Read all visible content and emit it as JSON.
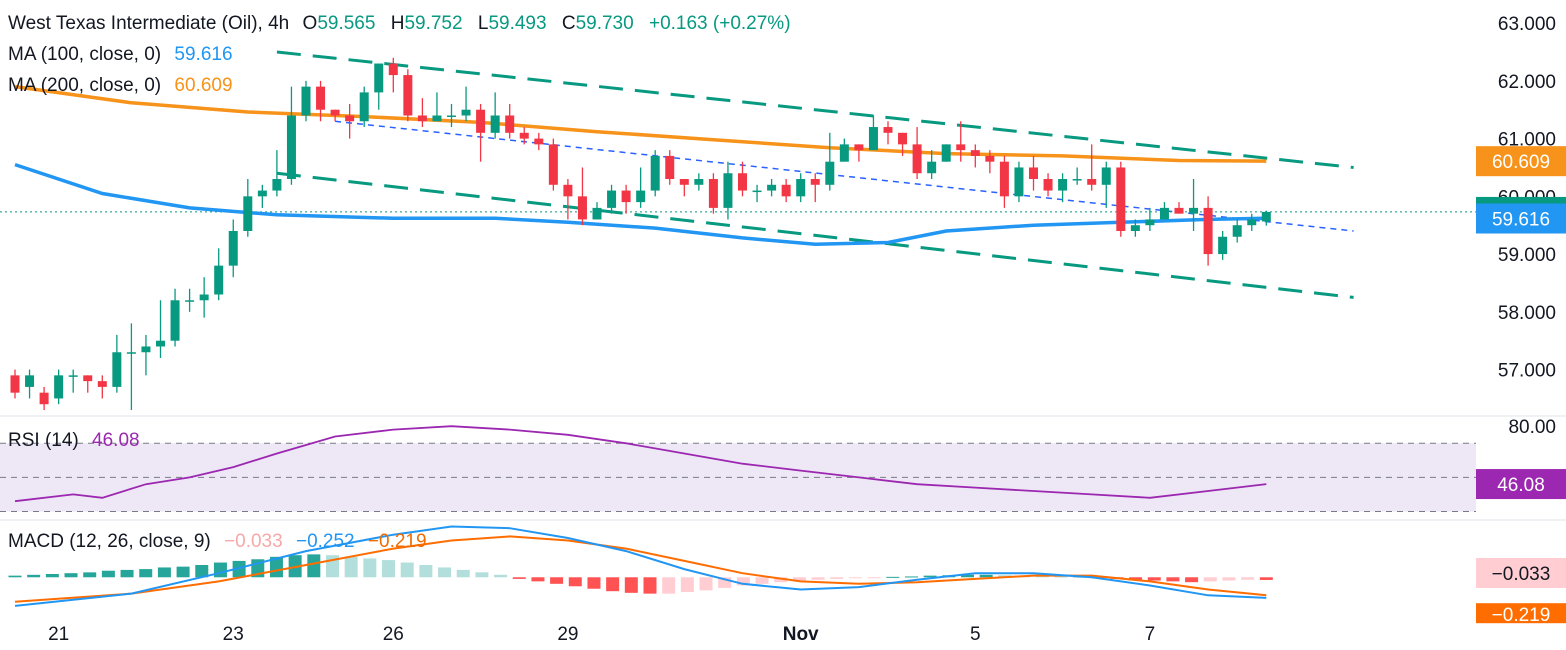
{
  "legend": {
    "title": "West Texas Intermediate (Oil), 4h",
    "ohlc": [
      {
        "label": "O",
        "value": "59.565"
      },
      {
        "label": "H",
        "value": "59.752"
      },
      {
        "label": "L",
        "value": "59.493"
      },
      {
        "label": "C",
        "value": "59.730"
      }
    ],
    "change": "+0.163 (+0.27%)",
    "ma100_label": "MA (100, close, 0)",
    "ma100_value": "59.616",
    "ma200_label": "MA (200, close, 0)",
    "ma200_value": "60.609",
    "rsi_label": "RSI (14)",
    "rsi_value": "46.08",
    "macd_label": "MACD (12, 26, close, 9)",
    "macd_hist": "−0.033",
    "macd_line": "−0.252",
    "macd_signal": "−0.219"
  },
  "colors": {
    "up": "#089981",
    "down": "#f23645",
    "ma100": "#2196f3",
    "ma200": "#f7931a",
    "channel": "#089981",
    "midline": "#2962ff",
    "rsi": "#9c27b0",
    "rsi_band": "#ede7f6",
    "macd_line": "#2196f3",
    "signal_line": "#ff6d00"
  },
  "chart_data": {
    "type": "candlestick",
    "timeframe": "4h",
    "price_axis": {
      "ylim": [
        56.3,
        63.4
      ],
      "ticks": [
        "63.000",
        "62.000",
        "61.000",
        "60.000",
        "59.000",
        "58.000",
        "57.000"
      ]
    },
    "x_ticks": [
      {
        "label": "21",
        "index": 3
      },
      {
        "label": "23",
        "index": 15
      },
      {
        "label": "26",
        "index": 26
      },
      {
        "label": "29",
        "index": 38
      },
      {
        "label": "Nov",
        "index": 54
      },
      {
        "label": "5",
        "index": 66
      },
      {
        "label": "7",
        "index": 78
      }
    ],
    "last_price": "59.730",
    "price_badges": [
      {
        "label": "60.609",
        "value": 60.609,
        "color": "#f7931a"
      },
      {
        "label": "59.730",
        "value": 59.73,
        "color": "#089981"
      },
      {
        "label": "59.616",
        "value": 59.616,
        "color": "#2196f3"
      }
    ],
    "candles": [
      [
        56.9,
        56.6,
        57.0,
        56.5
      ],
      [
        56.7,
        56.9,
        57.0,
        56.5
      ],
      [
        56.6,
        56.4,
        56.7,
        56.3
      ],
      [
        56.5,
        56.9,
        57.0,
        56.4
      ],
      [
        56.9,
        56.9,
        57.0,
        56.6
      ],
      [
        56.9,
        56.8,
        56.9,
        56.6
      ],
      [
        56.8,
        56.7,
        56.9,
        56.5
      ],
      [
        56.7,
        57.3,
        57.6,
        56.6
      ],
      [
        57.3,
        57.3,
        57.8,
        56.3
      ],
      [
        57.3,
        57.4,
        57.6,
        56.9
      ],
      [
        57.4,
        57.5,
        58.2,
        57.2
      ],
      [
        57.5,
        58.2,
        58.4,
        57.4
      ],
      [
        58.2,
        58.2,
        58.4,
        58.0
      ],
      [
        58.2,
        58.3,
        58.6,
        57.9
      ],
      [
        58.3,
        58.8,
        59.1,
        58.2
      ],
      [
        58.8,
        59.4,
        59.6,
        58.6
      ],
      [
        59.4,
        60.0,
        60.3,
        59.3
      ],
      [
        60.0,
        60.1,
        60.2,
        59.8
      ],
      [
        60.1,
        60.3,
        60.8,
        60.0
      ],
      [
        60.3,
        61.4,
        61.9,
        60.2
      ],
      [
        61.4,
        61.9,
        62.0,
        61.3
      ],
      [
        61.9,
        61.5,
        62.0,
        61.3
      ],
      [
        61.5,
        61.4,
        61.5,
        61.3
      ],
      [
        61.4,
        61.3,
        61.6,
        61.0
      ],
      [
        61.3,
        61.8,
        61.9,
        61.2
      ],
      [
        61.8,
        62.3,
        62.3,
        61.5
      ],
      [
        62.3,
        62.1,
        62.4,
        61.8
      ],
      [
        62.1,
        61.4,
        62.2,
        61.3
      ],
      [
        61.4,
        61.3,
        61.7,
        61.2
      ],
      [
        61.3,
        61.4,
        61.8,
        61.3
      ],
      [
        61.4,
        61.4,
        61.6,
        61.2
      ],
      [
        61.4,
        61.5,
        61.9,
        61.3
      ],
      [
        61.5,
        61.1,
        61.6,
        60.6
      ],
      [
        61.1,
        61.4,
        61.8,
        61.0
      ],
      [
        61.4,
        61.1,
        61.6,
        61.0
      ],
      [
        61.1,
        61.0,
        61.2,
        60.9
      ],
      [
        61.0,
        60.9,
        61.1,
        60.8
      ],
      [
        60.9,
        60.2,
        61.0,
        60.1
      ],
      [
        60.2,
        60.0,
        60.3,
        59.6
      ],
      [
        60.0,
        59.6,
        60.5,
        59.5
      ],
      [
        59.6,
        59.8,
        59.9,
        59.6
      ],
      [
        59.8,
        60.1,
        60.2,
        59.7
      ],
      [
        60.1,
        59.9,
        60.2,
        59.7
      ],
      [
        59.9,
        60.1,
        60.5,
        59.8
      ],
      [
        60.1,
        60.7,
        60.8,
        60.0
      ],
      [
        60.7,
        60.3,
        60.8,
        60.2
      ],
      [
        60.3,
        60.2,
        60.3,
        60.0
      ],
      [
        60.2,
        60.3,
        60.4,
        60.1
      ],
      [
        60.3,
        59.8,
        60.4,
        59.7
      ],
      [
        59.8,
        60.4,
        60.6,
        59.6
      ],
      [
        60.4,
        60.1,
        60.6,
        60.0
      ],
      [
        60.1,
        60.1,
        60.2,
        59.9
      ],
      [
        60.1,
        60.2,
        60.3,
        60.0
      ],
      [
        60.2,
        60.0,
        60.3,
        59.9
      ],
      [
        60.0,
        60.3,
        60.4,
        59.9
      ],
      [
        60.3,
        60.2,
        60.4,
        59.9
      ],
      [
        60.2,
        60.6,
        61.1,
        60.1
      ],
      [
        60.6,
        60.9,
        61.0,
        60.6
      ],
      [
        60.9,
        60.8,
        60.9,
        60.6
      ],
      [
        60.8,
        61.2,
        61.4,
        60.8
      ],
      [
        61.2,
        61.1,
        61.3,
        60.9
      ],
      [
        61.1,
        60.9,
        61.1,
        60.7
      ],
      [
        60.9,
        60.4,
        61.2,
        60.3
      ],
      [
        60.4,
        60.6,
        60.8,
        60.3
      ],
      [
        60.6,
        60.9,
        60.9,
        60.6
      ],
      [
        60.9,
        60.8,
        61.3,
        60.6
      ],
      [
        60.8,
        60.7,
        60.9,
        60.5
      ],
      [
        60.7,
        60.6,
        60.8,
        60.4
      ],
      [
        60.6,
        60.0,
        60.7,
        59.8
      ],
      [
        60.0,
        60.5,
        60.6,
        59.9
      ],
      [
        60.5,
        60.3,
        60.7,
        60.1
      ],
      [
        60.3,
        60.1,
        60.4,
        60.0
      ],
      [
        60.1,
        60.3,
        60.4,
        59.9
      ],
      [
        60.3,
        60.3,
        60.5,
        60.2
      ],
      [
        60.3,
        60.2,
        60.9,
        60.1
      ],
      [
        60.2,
        60.5,
        60.6,
        59.8
      ],
      [
        60.5,
        59.4,
        60.6,
        59.3
      ],
      [
        59.4,
        59.5,
        59.6,
        59.3
      ],
      [
        59.5,
        59.6,
        59.8,
        59.4
      ],
      [
        59.6,
        59.8,
        59.9,
        59.7
      ],
      [
        59.8,
        59.7,
        59.9,
        59.7
      ],
      [
        59.7,
        59.8,
        60.3,
        59.4
      ],
      [
        59.8,
        59.0,
        60.0,
        58.8
      ],
      [
        59.0,
        59.3,
        59.4,
        58.9
      ],
      [
        59.3,
        59.5,
        59.6,
        59.2
      ],
      [
        59.5,
        59.6,
        59.7,
        59.4
      ],
      [
        59.565,
        59.73,
        59.752,
        59.493
      ]
    ],
    "ma100": [
      [
        0,
        60.55
      ],
      [
        6,
        60.05
      ],
      [
        12,
        59.8
      ],
      [
        18,
        59.68
      ],
      [
        26,
        59.62
      ],
      [
        33,
        59.62
      ],
      [
        38,
        59.55
      ],
      [
        44,
        59.45
      ],
      [
        50,
        59.28
      ],
      [
        55,
        59.17
      ],
      [
        60,
        59.2
      ],
      [
        64,
        59.4
      ],
      [
        70,
        59.5
      ],
      [
        76,
        59.55
      ],
      [
        82,
        59.6
      ],
      [
        86,
        59.62
      ]
    ],
    "ma200": [
      [
        0,
        61.9
      ],
      [
        8,
        61.62
      ],
      [
        16,
        61.46
      ],
      [
        24,
        61.38
      ],
      [
        32,
        61.28
      ],
      [
        40,
        61.12
      ],
      [
        48,
        60.98
      ],
      [
        56,
        60.84
      ],
      [
        64,
        60.74
      ],
      [
        72,
        60.7
      ],
      [
        80,
        60.62
      ],
      [
        86,
        60.61
      ]
    ],
    "channel_upper": [
      [
        18,
        62.5
      ],
      [
        92,
        60.5
      ]
    ],
    "channel_lower": [
      [
        18,
        60.4
      ],
      [
        92,
        58.25
      ]
    ],
    "channel_mid": [
      [
        22,
        61.3
      ],
      [
        92,
        59.4
      ]
    ],
    "rsi_axis": {
      "ylim": [
        25,
        86
      ],
      "ticks": [
        "80.00"
      ],
      "band": [
        30,
        70
      ],
      "mid": 50
    },
    "rsi": [
      [
        0,
        36
      ],
      [
        4,
        40
      ],
      [
        6,
        38
      ],
      [
        9,
        46
      ],
      [
        12,
        50
      ],
      [
        15,
        56
      ],
      [
        18,
        64
      ],
      [
        22,
        74
      ],
      [
        26,
        78
      ],
      [
        30,
        80
      ],
      [
        34,
        78
      ],
      [
        38,
        75
      ],
      [
        42,
        70
      ],
      [
        46,
        64
      ],
      [
        50,
        58
      ],
      [
        54,
        54
      ],
      [
        58,
        50
      ],
      [
        62,
        46
      ],
      [
        66,
        44
      ],
      [
        70,
        42
      ],
      [
        74,
        40
      ],
      [
        78,
        38
      ],
      [
        82,
        42
      ],
      [
        86,
        46.08
      ]
    ],
    "macd_hist": [
      0.02,
      0.03,
      0.04,
      0.05,
      0.06,
      0.08,
      0.09,
      0.1,
      0.12,
      0.13,
      0.15,
      0.18,
      0.2,
      0.22,
      0.25,
      0.27,
      0.28,
      0.27,
      0.25,
      0.23,
      0.21,
      0.18,
      0.15,
      0.12,
      0.09,
      0.06,
      0.03,
      -0.02,
      -0.05,
      -0.08,
      -0.11,
      -0.14,
      -0.17,
      -0.19,
      -0.2,
      -0.2,
      -0.18,
      -0.16,
      -0.13,
      -0.1,
      -0.08,
      -0.06,
      -0.04,
      -0.03,
      -0.02,
      -0.01,
      -0.005,
      0.005,
      0.01,
      0.02,
      0.025,
      0.03,
      0.03,
      0.025,
      0.02,
      0.015,
      0.01,
      0.005,
      -0.01,
      -0.02,
      -0.03,
      -0.04,
      -0.05,
      -0.06,
      -0.05,
      -0.04,
      -0.03,
      -0.033
    ],
    "macd_line": [
      [
        0,
        -0.35
      ],
      [
        8,
        -0.2
      ],
      [
        14,
        0.05
      ],
      [
        20,
        0.32
      ],
      [
        26,
        0.52
      ],
      [
        30,
        0.62
      ],
      [
        34,
        0.6
      ],
      [
        38,
        0.48
      ],
      [
        42,
        0.32
      ],
      [
        46,
        0.1
      ],
      [
        50,
        -0.08
      ],
      [
        54,
        -0.15
      ],
      [
        58,
        -0.12
      ],
      [
        62,
        -0.03
      ],
      [
        66,
        0.05
      ],
      [
        70,
        0.05
      ],
      [
        74,
        0.0
      ],
      [
        78,
        -0.1
      ],
      [
        82,
        -0.22
      ],
      [
        86,
        -0.252
      ]
    ],
    "macd_signal": [
      [
        0,
        -0.3
      ],
      [
        8,
        -0.2
      ],
      [
        14,
        -0.05
      ],
      [
        20,
        0.15
      ],
      [
        26,
        0.35
      ],
      [
        30,
        0.45
      ],
      [
        34,
        0.5
      ],
      [
        38,
        0.45
      ],
      [
        42,
        0.35
      ],
      [
        46,
        0.2
      ],
      [
        50,
        0.05
      ],
      [
        54,
        -0.05
      ],
      [
        58,
        -0.08
      ],
      [
        62,
        -0.06
      ],
      [
        66,
        -0.02
      ],
      [
        70,
        0.02
      ],
      [
        74,
        0.02
      ],
      [
        78,
        -0.05
      ],
      [
        82,
        -0.15
      ],
      [
        86,
        -0.219
      ]
    ],
    "macd_axis": {
      "ylim": [
        -0.4,
        0.7
      ],
      "ticks": [
        "−0.033",
        "−0.219"
      ]
    }
  }
}
